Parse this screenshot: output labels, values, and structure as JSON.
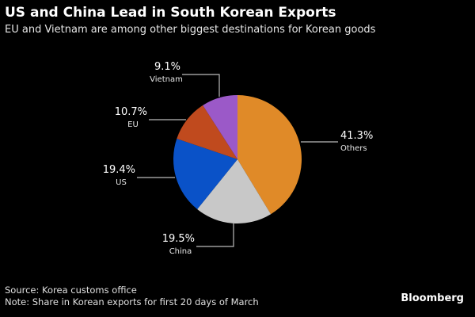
{
  "chart_data": {
    "type": "pie",
    "title": "US and China Lead in South Korean Exports",
    "subtitle": "EU and Vietnam are among other biggest destinations for Korean goods",
    "start": "top, clockwise",
    "slices": [
      {
        "label": "Others",
        "value": 41.3,
        "text": "41.3%",
        "color": "#e08a28"
      },
      {
        "label": "China",
        "value": 19.5,
        "text": "19.5%",
        "color": "#c8c8c8"
      },
      {
        "label": "US",
        "value": 19.4,
        "text": "19.4%",
        "color": "#0a52c8"
      },
      {
        "label": "EU",
        "value": 10.7,
        "text": "10.7%",
        "color": "#c04a1e"
      },
      {
        "label": "Vietnam",
        "value": 9.1,
        "text": "9.1%",
        "color": "#9b59c8"
      }
    ]
  },
  "source": "Source: Korea customs office",
  "note": "Note: Share in Korean exports for first 20 days of March",
  "brand": "Bloomberg"
}
